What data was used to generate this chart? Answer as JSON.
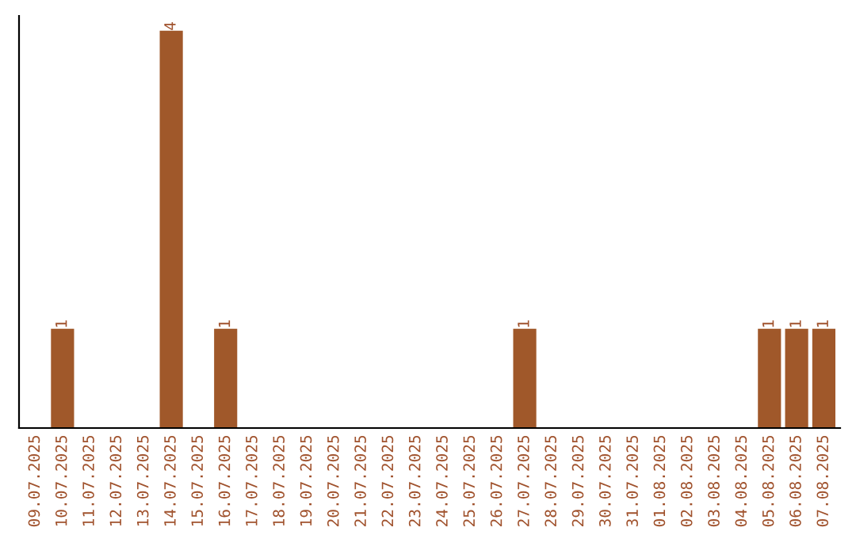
{
  "chart_data": {
    "type": "bar",
    "categories": [
      "09.07.2025",
      "10.07.2025",
      "11.07.2025",
      "12.07.2025",
      "13.07.2025",
      "14.07.2025",
      "15.07.2025",
      "16.07.2025",
      "17.07.2025",
      "18.07.2025",
      "19.07.2025",
      "20.07.2025",
      "21.07.2025",
      "22.07.2025",
      "23.07.2025",
      "24.07.2025",
      "25.07.2025",
      "26.07.2025",
      "27.07.2025",
      "28.07.2025",
      "29.07.2025",
      "30.07.2025",
      "31.07.2025",
      "01.08.2025",
      "02.08.2025",
      "03.08.2025",
      "04.08.2025",
      "05.08.2025",
      "06.08.2025",
      "07.08.2025"
    ],
    "values": [
      0,
      1,
      0,
      0,
      0,
      4,
      0,
      1,
      0,
      0,
      0,
      0,
      0,
      0,
      0,
      0,
      0,
      0,
      1,
      0,
      0,
      0,
      0,
      0,
      0,
      0,
      0,
      1,
      1,
      1
    ],
    "value_labels": [
      null,
      "1",
      null,
      null,
      null,
      "4",
      null,
      "1",
      null,
      null,
      null,
      null,
      null,
      null,
      null,
      null,
      null,
      null,
      "1",
      null,
      null,
      null,
      null,
      null,
      null,
      null,
      null,
      "1",
      "1",
      "1"
    ],
    "color": "#a0582a",
    "ylim": [
      0,
      4.15
    ],
    "tick_labels": "x",
    "grid": false,
    "legend": false
  }
}
